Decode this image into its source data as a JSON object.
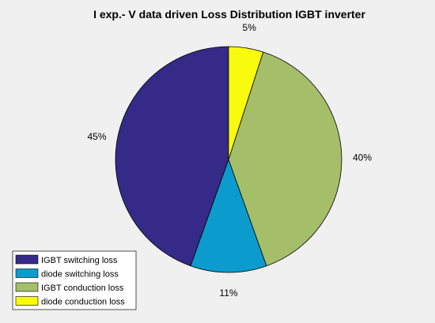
{
  "chart_data": {
    "type": "pie",
    "title": "I exp.- V data driven Loss Distribution IGBT inverter",
    "slices": [
      {
        "name": "IGBT switching loss",
        "value": 45,
        "label": "45%",
        "color": "#352a87"
      },
      {
        "name": "diode switching loss",
        "value": 11,
        "label": "11%",
        "color": "#0b9ccd"
      },
      {
        "name": "IGBT conduction loss",
        "value": 40,
        "label": "40%",
        "color": "#a5be6a"
      },
      {
        "name": "diode conduction loss",
        "value": 5,
        "label": "5%",
        "color": "#f9fb0e"
      }
    ],
    "start_angle_deg": 90,
    "direction": "counterclockwise",
    "legend_placement": "bottom-left"
  }
}
